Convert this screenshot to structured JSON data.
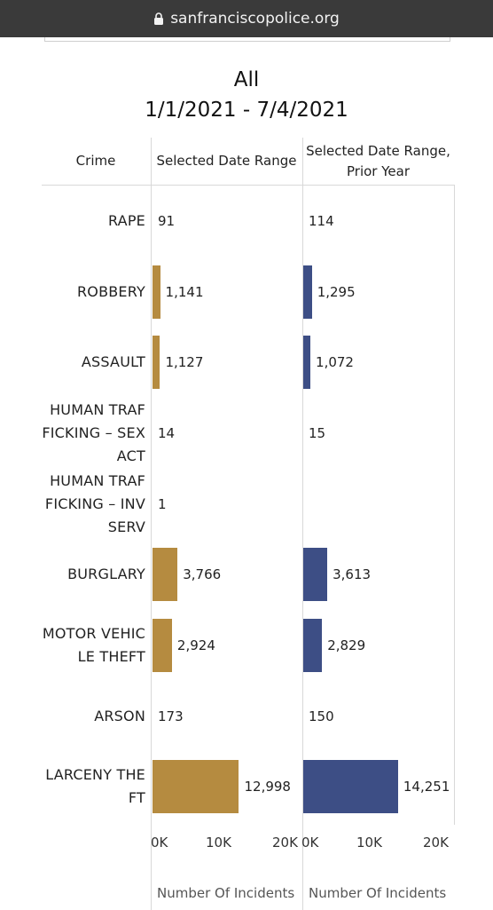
{
  "browser": {
    "url": "sanfranciscopolice.org"
  },
  "chart_data": {
    "type": "bar",
    "title": "All",
    "subtitle": "1/1/2021 - 7/4/2021",
    "row_header": "Crime",
    "categories": [
      "RAPE",
      "ROBBERY",
      "ASSAULT",
      "HUMAN TRAF FICKING – SEX ACT",
      "HUMAN TRAF FICKING – INV SERV",
      "BURGLARY",
      "MOTOR VEHIC LE THEFT",
      "ARSON",
      "LARCENY THE FT"
    ],
    "category_lines": [
      [
        "RAPE"
      ],
      [
        "ROBBERY"
      ],
      [
        "ASSAULT"
      ],
      [
        "HUMAN TRAF",
        "FICKING – SEX",
        "ACT"
      ],
      [
        "HUMAN TRAF",
        "FICKING – INV",
        "SERV"
      ],
      [
        "BURGLARY"
      ],
      [
        "MOTOR VEHIC",
        "LE THEFT"
      ],
      [
        "ARSON"
      ],
      [
        "LARCENY THE",
        "FT"
      ]
    ],
    "series": [
      {
        "name": "Selected Date Range",
        "color": "#b58b40",
        "values": [
          91,
          1141,
          1127,
          14,
          1,
          3766,
          2924,
          173,
          12998
        ],
        "labels": [
          "91",
          "1,141",
          "1,127",
          "14",
          "1",
          "3,766",
          "2,924",
          "173",
          "12,998"
        ]
      },
      {
        "name": "Selected Date Range, Prior Year",
        "color": "#3d4e85",
        "values": [
          114,
          1295,
          1072,
          15,
          null,
          3613,
          2829,
          150,
          14251
        ],
        "labels": [
          "114",
          "1,295",
          "1,072",
          "15",
          "",
          "3,613",
          "2,829",
          "150",
          "14,251"
        ]
      }
    ],
    "header_lines": [
      [
        "Selected Date Range"
      ],
      [
        "Selected Date Range,",
        "Prior Year"
      ]
    ],
    "xlim": [
      0,
      20000
    ],
    "xticks": [
      0,
      10000,
      20000
    ],
    "xtick_labels": [
      "0K",
      "10K",
      "20K"
    ],
    "xlabel": "Number Of Incidents",
    "grid": false,
    "legend": "none"
  }
}
